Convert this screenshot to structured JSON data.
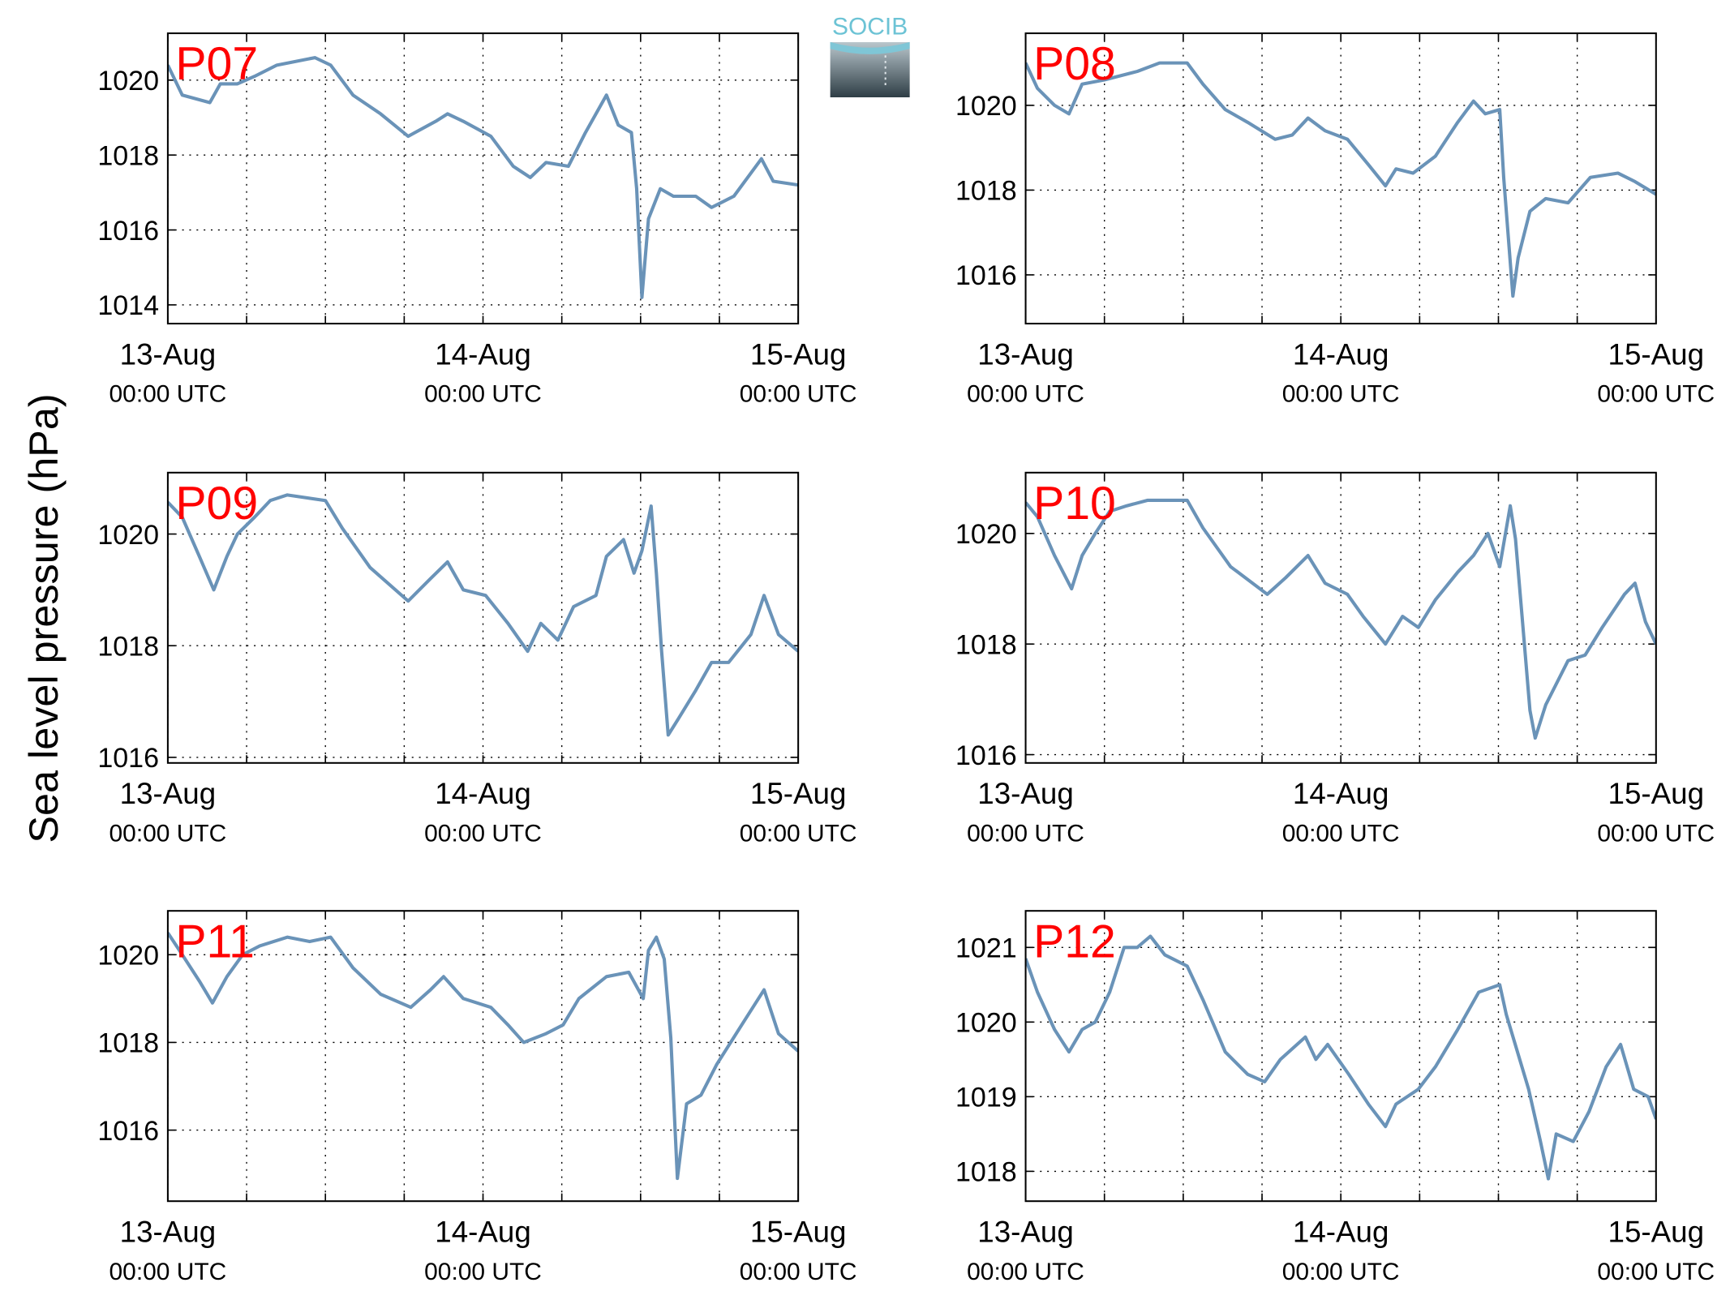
{
  "ylabel": "Sea level pressure (hPa)",
  "logo": "SOCIB",
  "chart_data": [
    {
      "type": "line",
      "title": "P07",
      "color": "#6a93b8",
      "grid": true,
      "x": [
        0,
        1.1,
        3.2,
        4.0,
        5.3,
        6.6,
        8.3,
        11.2,
        12.4,
        14.1,
        16.2,
        18.3,
        20.4,
        21.3,
        22.5,
        24.6,
        26.3,
        27.6,
        28.8,
        30.5,
        31.8,
        33.4,
        34.3,
        35.3,
        35.7,
        36.1,
        36.6,
        37.5,
        38.5,
        40.2,
        41.4,
        43.1,
        45.2,
        46.1,
        48.0
      ],
      "values": [
        1020.4,
        1019.6,
        1019.4,
        1019.9,
        1019.9,
        1020.1,
        1020.4,
        1020.6,
        1020.4,
        1019.6,
        1019.1,
        1018.5,
        1018.9,
        1019.1,
        1018.9,
        1018.5,
        1017.7,
        1017.4,
        1017.8,
        1017.7,
        1018.6,
        1019.6,
        1018.8,
        1018.6,
        1017.1,
        1014.2,
        1016.3,
        1017.1,
        1016.9,
        1016.9,
        1016.6,
        1016.9,
        1017.9,
        1017.3,
        1017.2
      ],
      "xlim": [
        0,
        48
      ],
      "xticks": [
        {
          "value": 0,
          "label": "13-Aug\n00:00 UTC"
        },
        {
          "value": 24,
          "label": "14-Aug\n00:00 UTC"
        },
        {
          "value": 48,
          "label": "15-Aug\n00:00 UTC"
        }
      ],
      "xminor": [
        6,
        12,
        18,
        30,
        36,
        42
      ],
      "ylim": [
        1013.5,
        1021.25
      ],
      "yticks": [
        1014,
        1016,
        1018,
        1020
      ]
    },
    {
      "type": "line",
      "title": "P08",
      "color": "#6a93b8",
      "grid": true,
      "x": [
        0,
        0.9,
        2.2,
        3.3,
        4.3,
        6.0,
        8.5,
        10.2,
        12.3,
        13.5,
        15.2,
        16.9,
        19.0,
        20.3,
        21.5,
        22.8,
        24.5,
        26.1,
        27.4,
        28.2,
        29.5,
        31.2,
        32.9,
        34.1,
        35.0,
        36.1,
        36.4,
        37.1,
        37.5,
        38.4,
        39.6,
        41.3,
        43.0,
        45.1,
        46.4,
        48.0
      ],
      "values": [
        1021.0,
        1020.4,
        1020.0,
        1019.8,
        1020.5,
        1020.6,
        1020.8,
        1021.0,
        1021.0,
        1020.5,
        1019.9,
        1019.6,
        1019.2,
        1019.3,
        1019.7,
        1019.4,
        1019.2,
        1018.6,
        1018.1,
        1018.5,
        1018.4,
        1018.8,
        1019.6,
        1020.1,
        1019.8,
        1019.9,
        1018.3,
        1015.5,
        1016.4,
        1017.5,
        1017.8,
        1017.7,
        1018.3,
        1018.4,
        1018.2,
        1017.9
      ],
      "xlim": [
        0,
        48
      ],
      "xticks": [
        {
          "value": 0,
          "label": "13-Aug\n00:00 UTC"
        },
        {
          "value": 24,
          "label": "14-Aug\n00:00 UTC"
        },
        {
          "value": 48,
          "label": "15-Aug\n00:00 UTC"
        }
      ],
      "xminor": [
        6,
        12,
        18,
        30,
        36,
        42
      ],
      "ylim": [
        1014.85,
        1021.7
      ],
      "yticks": [
        1016,
        1018,
        1020
      ]
    },
    {
      "type": "line",
      "title": "P09",
      "color": "#6a93b8",
      "grid": true,
      "x": [
        0,
        1.1,
        2.4,
        3.5,
        4.5,
        5.3,
        6.6,
        7.8,
        9.1,
        12.0,
        13.3,
        15.4,
        18.3,
        20.0,
        21.3,
        22.5,
        24.2,
        25.9,
        27.4,
        28.4,
        29.7,
        30.9,
        32.6,
        33.4,
        34.7,
        35.5,
        36.1,
        36.8,
        37.2,
        37.6,
        38.1,
        38.9,
        40.2,
        41.4,
        42.7,
        44.4,
        45.4,
        46.5,
        48.0
      ],
      "values": [
        1020.57,
        1020.3,
        1019.6,
        1019.0,
        1019.6,
        1020.0,
        1020.3,
        1020.6,
        1020.7,
        1020.6,
        1020.1,
        1019.4,
        1018.8,
        1019.2,
        1019.5,
        1019.0,
        1018.9,
        1018.4,
        1017.9,
        1018.4,
        1018.1,
        1018.7,
        1018.9,
        1019.6,
        1019.9,
        1019.3,
        1019.7,
        1020.5,
        1019.3,
        1017.9,
        1016.4,
        1016.7,
        1017.2,
        1017.7,
        1017.7,
        1018.2,
        1018.9,
        1018.2,
        1017.9
      ],
      "xlim": [
        0,
        48
      ],
      "xticks": [
        {
          "value": 0,
          "label": "13-Aug\n00:00 UTC"
        },
        {
          "value": 24,
          "label": "14-Aug\n00:00 UTC"
        },
        {
          "value": 48,
          "label": "15-Aug\n00:00 UTC"
        }
      ],
      "xminor": [
        6,
        12,
        18,
        30,
        36,
        42
      ],
      "ylim": [
        1015.9,
        1021.1
      ],
      "yticks": [
        1016,
        1018,
        1020
      ]
    },
    {
      "type": "line",
      "title": "P10",
      "color": "#6a93b8",
      "grid": true,
      "x": [
        0,
        0.9,
        2.2,
        3.5,
        4.3,
        5.3,
        6.4,
        7.7,
        9.3,
        12.3,
        13.5,
        15.6,
        18.4,
        19.8,
        21.5,
        22.8,
        24.5,
        25.7,
        27.4,
        28.7,
        29.9,
        31.2,
        32.9,
        34.1,
        35.2,
        36.1,
        36.9,
        37.3,
        37.8,
        38.4,
        38.8,
        39.6,
        41.3,
        42.6,
        43.9,
        45.6,
        46.4,
        47.2,
        48.0
      ],
      "values": [
        1020.56,
        1020.3,
        1019.6,
        1019.0,
        1019.6,
        1020.0,
        1020.4,
        1020.5,
        1020.6,
        1020.6,
        1020.1,
        1019.4,
        1018.9,
        1019.2,
        1019.6,
        1019.1,
        1018.9,
        1018.5,
        1018.0,
        1018.5,
        1018.3,
        1018.8,
        1019.3,
        1019.6,
        1020.0,
        1019.4,
        1020.5,
        1019.9,
        1018.5,
        1016.8,
        1016.3,
        1016.9,
        1017.7,
        1017.8,
        1018.3,
        1018.9,
        1019.1,
        1018.4,
        1018.0
      ],
      "xlim": [
        0,
        48
      ],
      "xticks": [
        {
          "value": 0,
          "label": "13-Aug\n00:00 UTC"
        },
        {
          "value": 24,
          "label": "14-Aug\n00:00 UTC"
        },
        {
          "value": 48,
          "label": "15-Aug\n00:00 UTC"
        }
      ],
      "xminor": [
        6,
        12,
        18,
        30,
        36,
        42
      ],
      "ylim": [
        1015.85,
        1021.1
      ],
      "yticks": [
        1016,
        1018,
        1020
      ]
    },
    {
      "type": "line",
      "title": "P11",
      "color": "#6a93b8",
      "grid": true,
      "x": [
        0,
        1.1,
        2.4,
        3.4,
        4.5,
        5.7,
        7.0,
        9.1,
        10.8,
        12.4,
        14.1,
        16.2,
        18.5,
        20.0,
        21.0,
        22.5,
        24.6,
        25.9,
        27.1,
        28.8,
        30.1,
        31.3,
        33.4,
        35.1,
        36.2,
        36.6,
        37.2,
        37.8,
        38.3,
        38.8,
        39.5,
        40.6,
        41.8,
        43.7,
        45.4,
        46.5,
        48.0
      ],
      "values": [
        1020.5,
        1020.0,
        1019.4,
        1018.9,
        1019.5,
        1020.0,
        1020.2,
        1020.4,
        1020.3,
        1020.4,
        1019.7,
        1019.1,
        1018.8,
        1019.2,
        1019.5,
        1019.0,
        1018.8,
        1018.4,
        1018.0,
        1018.2,
        1018.4,
        1019.0,
        1019.5,
        1019.6,
        1019.0,
        1020.1,
        1020.4,
        1019.9,
        1018.1,
        1014.9,
        1016.6,
        1016.8,
        1017.5,
        1018.4,
        1019.2,
        1018.2,
        1017.8
      ],
      "xlim": [
        0,
        48
      ],
      "xticks": [
        {
          "value": 0,
          "label": "13-Aug\n00:00 UTC"
        },
        {
          "value": 24,
          "label": "14-Aug\n00:00 UTC"
        },
        {
          "value": 48,
          "label": "15-Aug\n00:00 UTC"
        }
      ],
      "xminor": [
        6,
        12,
        18,
        30,
        36,
        42
      ],
      "ylim": [
        1014.38,
        1021.0
      ],
      "yticks": [
        1016,
        1018,
        1020
      ]
    },
    {
      "type": "line",
      "title": "P12",
      "color": "#6a93b8",
      "grid": true,
      "x": [
        0,
        0.9,
        2.2,
        3.3,
        4.3,
        5.3,
        6.4,
        7.5,
        8.5,
        9.5,
        10.6,
        12.3,
        13.5,
        15.2,
        16.9,
        18.2,
        19.4,
        21.3,
        22.1,
        23.0,
        24.6,
        26.1,
        27.4,
        28.2,
        29.9,
        31.2,
        32.9,
        34.5,
        36.1,
        36.6,
        38.3,
        39.2,
        39.8,
        40.4,
        41.7,
        42.9,
        44.2,
        45.3,
        46.3,
        47.4,
        48.0
      ],
      "values": [
        1020.85,
        1020.4,
        1019.9,
        1019.6,
        1019.9,
        1020.0,
        1020.4,
        1021.0,
        1021.0,
        1021.15,
        1020.9,
        1020.75,
        1020.3,
        1019.6,
        1019.3,
        1019.2,
        1019.5,
        1019.8,
        1019.5,
        1019.7,
        1019.3,
        1018.9,
        1018.6,
        1018.9,
        1019.1,
        1019.4,
        1019.9,
        1020.4,
        1020.5,
        1020.1,
        1019.1,
        1018.4,
        1017.9,
        1018.5,
        1018.4,
        1018.8,
        1019.4,
        1019.7,
        1019.1,
        1019.0,
        1018.7
      ],
      "xlim": [
        0,
        48
      ],
      "xticks": [
        {
          "value": 0,
          "label": "13-Aug\n00:00 UTC"
        },
        {
          "value": 24,
          "label": "14-Aug\n00:00 UTC"
        },
        {
          "value": 48,
          "label": "15-Aug\n00:00 UTC"
        }
      ],
      "xminor": [
        6,
        12,
        18,
        30,
        36,
        42
      ],
      "ylim": [
        1017.6,
        1021.49
      ],
      "yticks": [
        1018,
        1019,
        1020,
        1021
      ]
    }
  ]
}
